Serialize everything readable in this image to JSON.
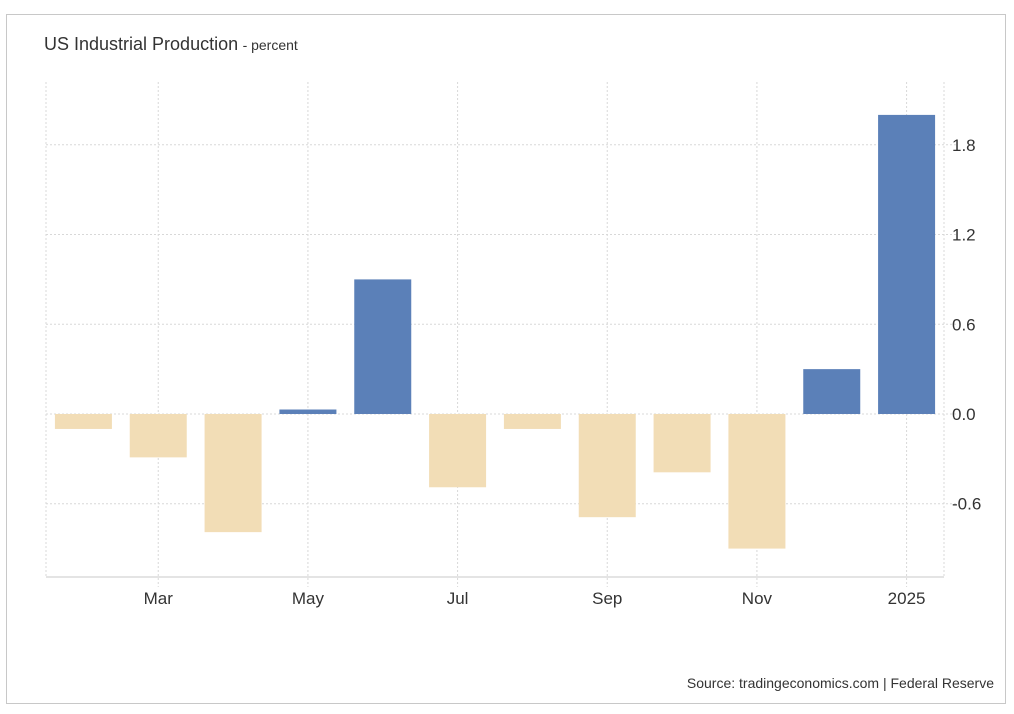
{
  "header": {
    "title": "US Industrial Production",
    "subtitle": "- percent"
  },
  "footer": {
    "source": "Source: tradingeconomics.com | Federal Reserve"
  },
  "chart_data": {
    "type": "bar",
    "categories": [
      "Feb 2024",
      "Mar 2024",
      "Apr 2024",
      "May 2024",
      "Jun 2024",
      "Jul 2024",
      "Aug 2024",
      "Sep 2024",
      "Oct 2024",
      "Nov 2024",
      "Dec 2024",
      "Jan 2025"
    ],
    "values": [
      -0.1,
      -0.29,
      -0.79,
      0.03,
      0.9,
      -0.49,
      -0.1,
      -0.69,
      -0.39,
      -0.9,
      0.3,
      2.0
    ],
    "xtick_labels": [
      "Mar",
      "May",
      "Jul",
      "Sep",
      "Nov",
      "2025"
    ],
    "xtick_categories": [
      "Mar 2024",
      "May 2024",
      "Jul 2024",
      "Sep 2024",
      "Nov 2024",
      "Jan 2025"
    ],
    "yticks": [
      1.8,
      1.2,
      0.6,
      0.0,
      -0.6
    ],
    "ytick_labels": [
      "1.8",
      "1.2",
      "0.6",
      "0.0",
      "-0.6"
    ],
    "ylim": [
      -1.09,
      2.22
    ],
    "y_axis_side": "right",
    "grid": true,
    "colors": {
      "positive": "#5b80b8",
      "negative": "#f2ddb6",
      "grid": "#d8d8d8",
      "axis": "#c8c8c8"
    }
  }
}
